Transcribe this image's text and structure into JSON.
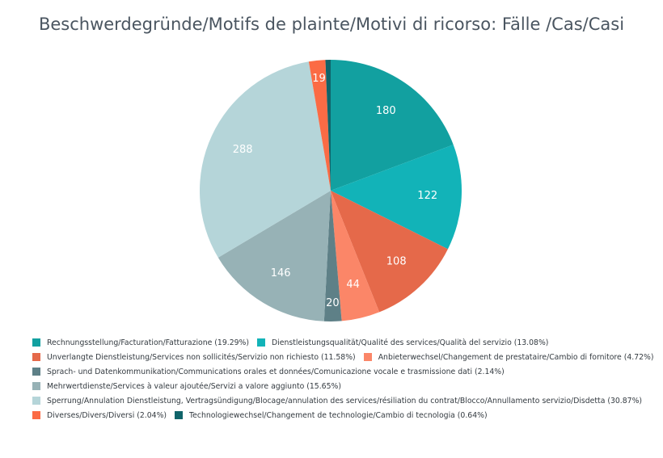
{
  "chart_data": {
    "type": "pie",
    "title": "Beschwerdegründe/Motifs de plainte/Motivi di ricorso: Fälle /Cas/Casi",
    "slices": [
      {
        "label": "Rechnungsstellung/Facturation/Fatturazione (19.29%)",
        "value": 180,
        "value_label": "180",
        "color": "#12a0a0"
      },
      {
        "label": "Dienstleistungsqualität/Qualité des services/Qualità del servizio (13.08%)",
        "value": 122,
        "value_label": "122",
        "color": "#12b3b8"
      },
      {
        "label": "Unverlangte Dienstleistung/Services non sollicités/Servizio non richiesto (11.58%)",
        "value": 108,
        "value_label": "108",
        "color": "#e5694a"
      },
      {
        "label": "Anbieterwechsel/Changement de prestataire/Cambio di fornitore (4.72%)",
        "value": 44,
        "value_label": "44",
        "color": "#fb8668"
      },
      {
        "label": "Sprach- und Datenkommunikation/Communications orales et données/Comunicazione vocale e trasmissione dati (2.14%)",
        "value": 20,
        "value_label": "20",
        "color": "#5e8087"
      },
      {
        "label": "Mehrwertdienste/Services à valeur ajoutée/Servizi a valore aggiunto (15.65%)",
        "value": 146,
        "value_label": "146",
        "color": "#97b2b6"
      },
      {
        "label": "Sperrung/Annulation Dienstleistung, Vertragsündigung/Blocage/annulation des services/résiliation du contrat/Blocco/Annullamento servizio/Disdetta (30.87%)",
        "value": 288,
        "value_label": "288",
        "color": "#b5d5d9"
      },
      {
        "label": "Diverses/Divers/Diversi (2.04%)",
        "value": 19,
        "value_label": "19",
        "color": "#fb6b45"
      },
      {
        "label": "Technologiewechsel/Changement de technologie/Cambio di tecnologia (0.64%)",
        "value": 6,
        "value_label": "",
        "color": "#10646a"
      }
    ],
    "legend_position": "bottom",
    "legend_rows": [
      [
        0,
        1
      ],
      [
        2,
        3
      ],
      [
        4
      ],
      [
        5
      ],
      [
        6
      ],
      [
        7,
        8
      ]
    ]
  }
}
